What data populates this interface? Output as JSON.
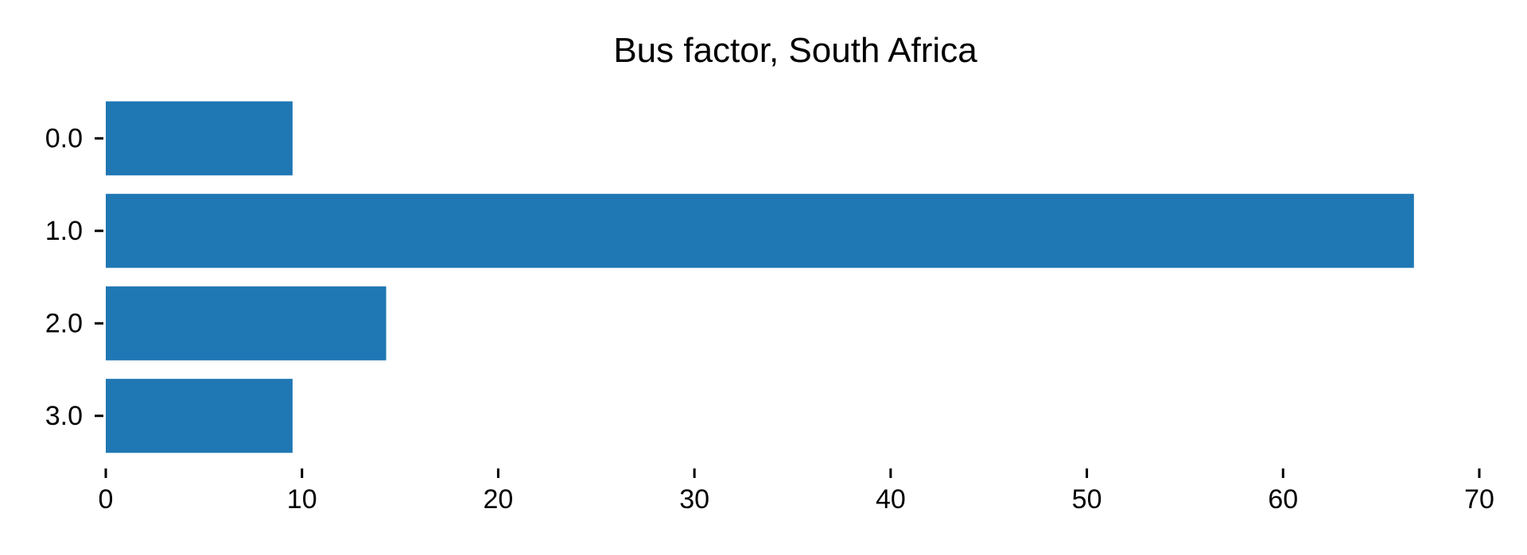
{
  "chart_data": {
    "type": "bar",
    "orientation": "horizontal",
    "title": "Bus factor, South Africa",
    "xlabel": "",
    "ylabel": "",
    "categories": [
      "0.0",
      "1.0",
      "2.0",
      "3.0"
    ],
    "values": [
      9.52,
      66.67,
      14.29,
      9.52
    ],
    "xlim": [
      0,
      70
    ],
    "xticks": [
      0,
      10,
      20,
      30,
      40,
      50,
      60,
      70
    ],
    "grid": false,
    "bar_color": "#1f77b4"
  }
}
